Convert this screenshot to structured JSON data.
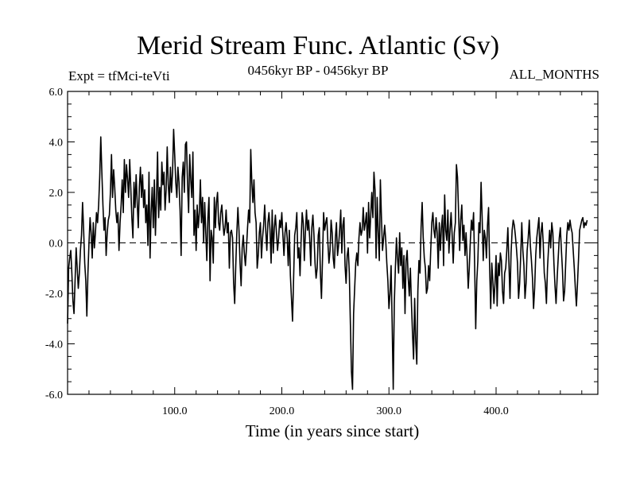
{
  "chart_data": {
    "type": "line",
    "title": "Merid Stream Func. Atlantic (Sv)",
    "left_caption": "Expt = tfMci-teVti",
    "center_caption": "0456kyr BP - 0456kyr BP",
    "right_caption": "ALL_MONTHS",
    "xlabel": "Time (in years since start)",
    "ylabel": "",
    "xlim": [
      0,
      495
    ],
    "ylim": [
      -6.0,
      6.0
    ],
    "x_ticks": [
      "100.0",
      "200.0",
      "300.0",
      "400.0"
    ],
    "x_tick_values": [
      100,
      200,
      300,
      400
    ],
    "y_ticks": [
      "6.0",
      "4.0",
      "2.0",
      "0.0",
      "-2.0",
      "-4.0",
      "-6.0"
    ],
    "y_tick_values": [
      6,
      4,
      2,
      0,
      -2,
      -4,
      -6
    ],
    "reference_line": 0.0,
    "grid": false,
    "series": [
      {
        "x_start": 0,
        "x_step": 1,
        "values": [
          -3.2,
          -1.0,
          -0.6,
          -0.3,
          -1.2,
          -2.3,
          -2.8,
          -1.5,
          -0.2,
          -1.0,
          -1.8,
          -1.2,
          -0.3,
          0.3,
          1.6,
          0.5,
          -0.8,
          -1.5,
          -2.9,
          -1.2,
          0.0,
          1.0,
          0.4,
          -0.6,
          0.8,
          -0.2,
          0.4,
          1.2,
          0.8,
          1.5,
          2.6,
          4.2,
          2.8,
          1.5,
          0.5,
          1.0,
          -0.5,
          0.4,
          0.9,
          1.1,
          2.0,
          3.5,
          1.8,
          2.9,
          2.2,
          1.3,
          0.8,
          1.2,
          -0.3,
          0.8,
          1.5,
          2.5,
          1.2,
          3.3,
          2.0,
          3.1,
          2.5,
          1.8,
          3.3,
          2.2,
          1.0,
          0.2,
          2.4,
          1.4,
          2.7,
          1.6,
          0.6,
          2.2,
          3.0,
          1.8,
          2.7,
          1.4,
          2.1,
          0.8,
          1.5,
          -0.1,
          2.8,
          -0.6,
          1.2,
          2.2,
          0.6,
          2.5,
          0.3,
          1.8,
          3.6,
          1.0,
          2.2,
          1.3,
          3.2,
          2.3,
          2.8,
          1.3,
          2.1,
          3.8,
          2.3,
          1.6,
          3.0,
          2.0,
          2.8,
          4.5,
          3.5,
          2.4,
          1.8,
          3.0,
          2.4,
          1.3,
          -0.5,
          2.6,
          3.2,
          2.0,
          3.9,
          4.0,
          2.3,
          1.2,
          3.5,
          2.5,
          1.8,
          3.6,
          0.3,
          1.3,
          -0.3,
          1.5,
          0.6,
          1.2,
          2.5,
          0.8,
          1.8,
          0.0,
          1.6,
          0.4,
          -0.7,
          1.0,
          1.8,
          -1.5,
          0.5,
          0.2,
          -0.8,
          1.8,
          0.6,
          1.6,
          2.0,
          0.8,
          0.5,
          1.2,
          1.5,
          0.8,
          0.3,
          0.6,
          1.3,
          0.4,
          0.8,
          -1.0,
          0.4,
          0.5,
          0.2,
          -1.6,
          -2.4,
          -0.9,
          0.4,
          1.4,
          0.5,
          -0.8,
          -1.7,
          -0.2,
          0.3,
          -0.4,
          -0.9,
          -0.2,
          0.6,
          1.3,
          0.8,
          3.7,
          2.4,
          1.6,
          2.5,
          1.2,
          0.8,
          -1.0,
          -0.5,
          0.4,
          0.8,
          -0.6,
          0.2,
          0.7,
          1.5,
          0.5,
          -0.3,
          0.8,
          1.2,
          0.5,
          -0.8,
          1.3,
          -0.4,
          0.6,
          1.1,
          0.4,
          -0.3,
          0.2,
          0.9,
          0.6,
          1.2,
          0.3,
          -0.5,
          0.4,
          0.8,
          0.2,
          -0.9,
          0.5,
          -1.3,
          -2.2,
          -3.1,
          -1.4,
          0.3,
          0.6,
          1.2,
          -0.6,
          -0.2,
          -1.3,
          0.1,
          1.2,
          0.8,
          -0.7,
          0.4,
          1.3,
          0.5,
          0.9,
          0.2,
          -0.9,
          0.6,
          1.1,
          0.3,
          -0.8,
          -1.4,
          -1.0,
          0.3,
          0.6,
          -1.2,
          -2.2,
          -0.6,
          1.2,
          0.5,
          0.8,
          1.0,
          0.0,
          -0.8,
          -0.3,
          0.9,
          0.4,
          -0.6,
          -1.0,
          0.2,
          0.8,
          -0.5,
          -0.1,
          0.5,
          1.3,
          -0.4,
          0.7,
          1.0,
          -0.9,
          -1.6,
          -0.5,
          -0.2,
          -1.2,
          -3.2,
          -5.1,
          -5.8,
          -2.8,
          -1.8,
          -0.8,
          -0.4,
          -0.9,
          0.2,
          0.8,
          0.3,
          0.5,
          1.4,
          0.5,
          0.8,
          1.2,
          -0.4,
          1.6,
          0.2,
          1.1,
          2.0,
          1.0,
          2.8,
          2.1,
          -0.6,
          1.8,
          0.4,
          -0.7,
          2.5,
          1.0,
          -0.3,
          0.2,
          0.7,
          0.1,
          -0.8,
          -1.5,
          -2.6,
          -2.0,
          -0.9,
          -3.2,
          -5.8,
          -2.4,
          -1.0,
          0.2,
          -0.6,
          -1.2,
          0.4,
          -0.9,
          -0.2,
          -1.8,
          -0.5,
          -2.8,
          -0.7,
          -0.3,
          -1.4,
          -2.1,
          -1.0,
          -2.4,
          -3.6,
          -4.6,
          -2.2,
          -3.9,
          -4.8,
          -1.9,
          -0.7,
          -1.2,
          0.6,
          1.6,
          0.2,
          -0.6,
          -1.0,
          -2.0,
          -1.8,
          -0.9,
          -1.5,
          -0.3,
          0.8,
          1.2,
          0.5,
          0.2,
          1.0,
          0.4,
          -1.0,
          0.8,
          -0.3,
          0.6,
          1.1,
          -0.9,
          1.9,
          0.5,
          0.1,
          1.3,
          -0.4,
          0.5,
          1.2,
          0.3,
          -0.8,
          0.4,
          0.8,
          3.1,
          2.6,
          1.2,
          -0.3,
          0.9,
          1.5,
          0.1,
          0.7,
          -0.5,
          0.4,
          -0.6,
          -1.8,
          -1.0,
          0.1,
          0.9,
          0.5,
          1.2,
          -0.9,
          -3.4,
          -1.5,
          -0.7,
          0.8,
          0.4,
          2.4,
          1.0,
          -0.7,
          0.5,
          0.2,
          -0.6,
          0.7,
          1.4,
          -1.0,
          -2.6,
          -0.8,
          -1.5,
          -2.4,
          -1.6,
          -0.5,
          -2.5,
          -0.8,
          -1.3,
          -0.4,
          -0.7,
          -1.9,
          -2.4,
          -1.2,
          -1.0,
          -0.3,
          0.6,
          -0.8,
          -2.2,
          -0.4,
          0.5,
          0.9,
          0.7,
          0.3,
          -0.2,
          -0.8,
          -2.2,
          -1.6,
          -0.5,
          0.8,
          -0.3,
          -0.9,
          -2.2,
          -1.6,
          -0.3,
          0.2,
          0.9,
          -0.1,
          -0.7,
          -1.4,
          -2.6,
          -1.8,
          -0.5,
          0.2,
          0.6,
          1.0,
          -0.6,
          0.4,
          0.8,
          0.0,
          -1.2,
          -1.6,
          -2.4,
          -1.0,
          -0.2,
          0.5,
          -0.2,
          0.8,
          0.4,
          -0.8,
          -1.7,
          -2.4,
          -1.4,
          -0.6,
          0.2,
          0.6,
          -0.3,
          -1.1,
          -2.3,
          -1.9,
          -0.8,
          0.3,
          0.8,
          0.5,
          0.9,
          0.6,
          0.4,
          -0.3,
          -1.0,
          -1.8,
          -2.5,
          -1.6,
          -0.6,
          0.5,
          0.7,
          0.9,
          1.0,
          0.6,
          0.8,
          0.7,
          0.9
        ]
      }
    ]
  }
}
